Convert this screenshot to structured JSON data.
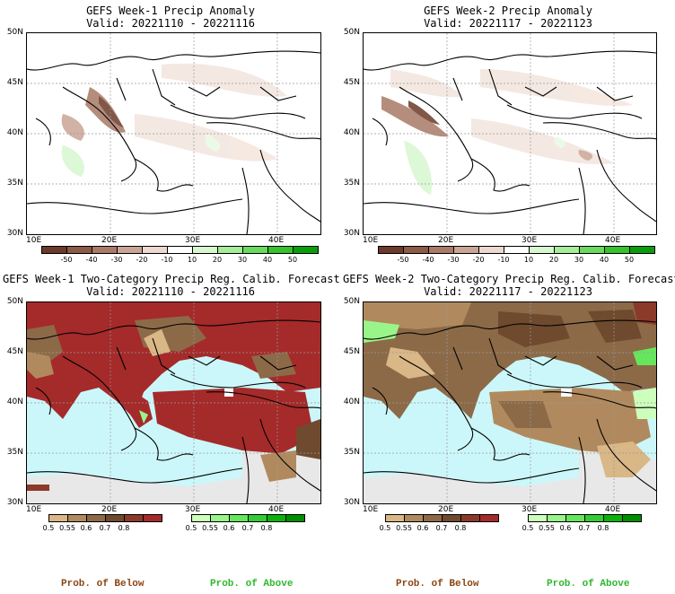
{
  "colors": {
    "below_strong": "#a52a2a",
    "below_mid": "#8b5a2b",
    "below_light": "#c8a070",
    "above": "#00b000",
    "sea": "#ccf7fa",
    "land_nodata": "#e8e8e8"
  },
  "panels": [
    {
      "title": "GEFS Week-1 Precip Anomaly",
      "valid": "Valid: 20221110 - 20221116"
    },
    {
      "title": "GEFS Week-2 Precip Anomaly",
      "valid": "Valid: 20221117 - 20221123"
    },
    {
      "title": "GEFS Week-1 Two-Category Precip Reg. Calib. Forecast",
      "valid": "Valid: 20221110 - 20221116"
    },
    {
      "title": "GEFS Week-2 Two-Category Precip Reg. Calib. Forecast",
      "valid": "Valid: 20221117 - 20221123"
    }
  ],
  "lat_labels": [
    "50N",
    "45N",
    "40N",
    "35N",
    "30N"
  ],
  "lon_labels": [
    "10E",
    "20E",
    "30E",
    "40E"
  ],
  "anomaly_colorbar": {
    "ticks": [
      "-50",
      "-40",
      "-30",
      "-20",
      "-10",
      "10",
      "20",
      "30",
      "40",
      "50"
    ],
    "colors": [
      "#6b3a2a",
      "#8c5a46",
      "#a97a66",
      "#c9a596",
      "#ecd8d0",
      "#ffffff",
      "#d7f7cf",
      "#a6ec99",
      "#6bd95e",
      "#35c22c",
      "#0a9d0a"
    ]
  },
  "prob_below_colorbar": {
    "ticks": [
      "0.5",
      "0.55",
      "0.6",
      "0.7",
      "0.8"
    ],
    "colors": [
      "#d9b787",
      "#b08a5e",
      "#8c6a48",
      "#6f4a2e",
      "#8b3a2a",
      "#a52a2a"
    ]
  },
  "prob_above_colorbar": {
    "ticks": [
      "0.5",
      "0.55",
      "0.6",
      "0.7",
      "0.8"
    ],
    "colors": [
      "#ccffbb",
      "#99f58a",
      "#66e65c",
      "#33cc33",
      "#0ab30a",
      "#008f00"
    ]
  },
  "legend": {
    "below": "Prob. of Below",
    "above": "Prob. of Above"
  }
}
